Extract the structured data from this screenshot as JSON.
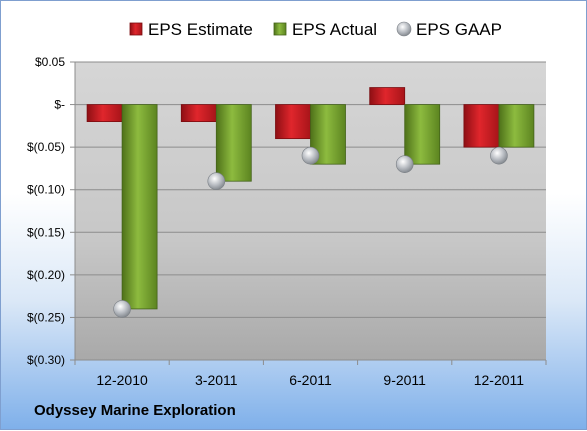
{
  "company": "Odyssey Marine Exploration",
  "chart_data": {
    "type": "bar",
    "categories": [
      "12-2010",
      "3-2011",
      "6-2011",
      "9-2011",
      "12-2011"
    ],
    "series": [
      {
        "name": "EPS Estimate",
        "type": "bar",
        "color": "#c0181e",
        "values": [
          -0.02,
          -0.02,
          -0.04,
          0.02,
          -0.05
        ]
      },
      {
        "name": "EPS Actual",
        "type": "bar",
        "color": "#6f9a2a",
        "values": [
          -0.24,
          -0.09,
          -0.07,
          -0.07,
          -0.05
        ]
      },
      {
        "name": "EPS GAAP",
        "type": "scatter",
        "color": "#b4b9bf",
        "values": [
          -0.24,
          -0.09,
          -0.06,
          -0.07,
          -0.06
        ]
      }
    ],
    "ylim": [
      -0.3,
      0.05
    ],
    "yticks": [
      {
        "value": 0.05,
        "label": "$0.05"
      },
      {
        "value": 0,
        "label": "$-"
      },
      {
        "value": -0.05,
        "label": "$(0.05)"
      },
      {
        "value": -0.1,
        "label": "$(0.10)"
      },
      {
        "value": -0.15,
        "label": "$(0.15)"
      },
      {
        "value": -0.2,
        "label": "$(0.20)"
      },
      {
        "value": -0.25,
        "label": "$(0.25)"
      },
      {
        "value": -0.3,
        "label": "$(0.30)"
      }
    ],
    "grid": true,
    "legend_position": "top"
  }
}
